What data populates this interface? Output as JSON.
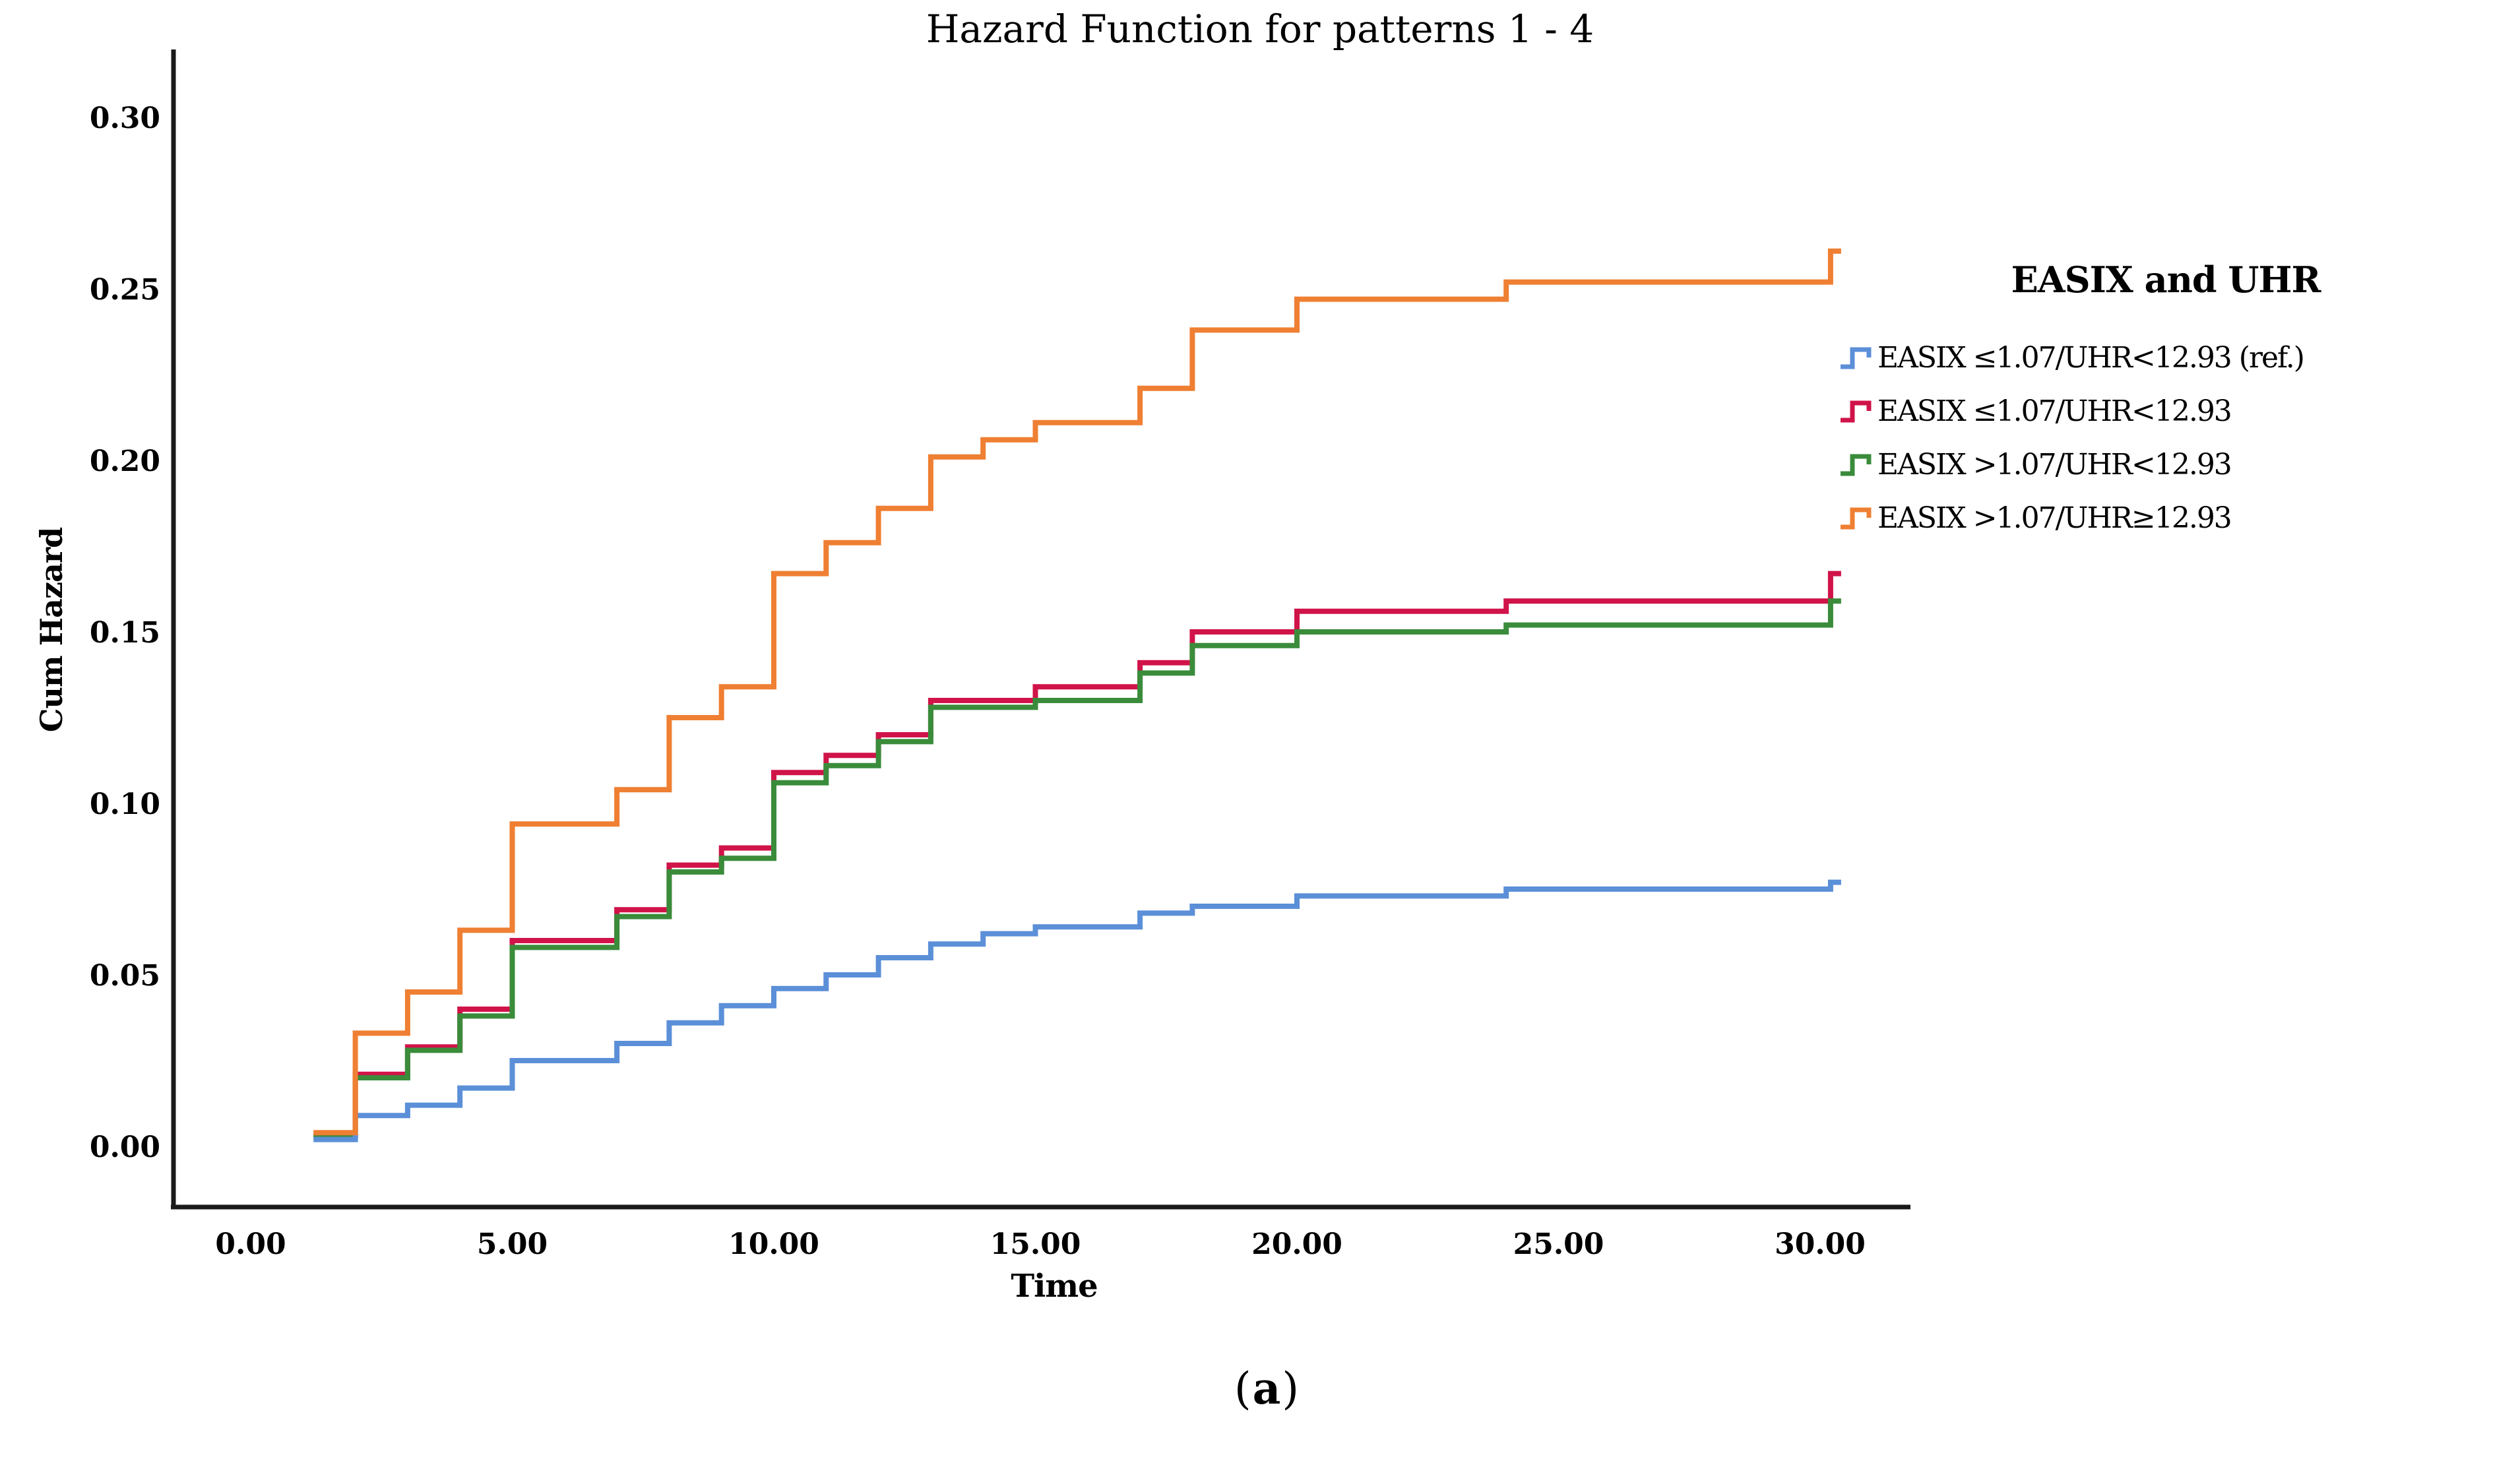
{
  "page": {
    "title": "Hazard Function for patterns 1 - 4",
    "caption": {
      "open": "(",
      "letter": "a",
      "close": ")"
    }
  },
  "axes": {
    "x": {
      "label": "Time",
      "ticks": [
        {
          "v": 0,
          "label": "0.00"
        },
        {
          "v": 5,
          "label": "5.00"
        },
        {
          "v": 10,
          "label": "10.00"
        },
        {
          "v": 15,
          "label": "15.00"
        },
        {
          "v": 20,
          "label": "20.00"
        },
        {
          "v": 25,
          "label": "25.00"
        },
        {
          "v": 30,
          "label": "30.00"
        }
      ]
    },
    "y": {
      "label": "Cum Hazard",
      "ticks": [
        {
          "v": 0.0,
          "label": "0.00"
        },
        {
          "v": 0.05,
          "label": "0.05"
        },
        {
          "v": 0.1,
          "label": "0.10"
        },
        {
          "v": 0.15,
          "label": "0.15"
        },
        {
          "v": 0.2,
          "label": "0.20"
        },
        {
          "v": 0.25,
          "label": "0.25"
        },
        {
          "v": 0.3,
          "label": "0.30"
        }
      ]
    }
  },
  "legend": {
    "title": "EASIX and UHR"
  },
  "chart_data": {
    "type": "line",
    "subtype": "step-cumulative-hazard",
    "title": "Hazard Function for patterns 1 - 4",
    "xlabel": "Time",
    "ylabel": "Cum Hazard",
    "xlim": [
      0,
      31.5
    ],
    "ylim": [
      0,
      0.31
    ],
    "grid": false,
    "legend_position": "right",
    "series": [
      {
        "name": "EASIX ≤1.07/UHR<12.93 (ref.)",
        "color": "#5B8FD8",
        "points": [
          [
            1.2,
            0.002
          ],
          [
            2,
            0.009
          ],
          [
            3,
            0.012
          ],
          [
            4,
            0.017
          ],
          [
            5,
            0.025
          ],
          [
            7,
            0.03
          ],
          [
            8,
            0.036
          ],
          [
            9,
            0.041
          ],
          [
            10,
            0.046
          ],
          [
            11,
            0.05
          ],
          [
            12,
            0.055
          ],
          [
            13,
            0.059
          ],
          [
            14,
            0.062
          ],
          [
            15,
            0.064
          ],
          [
            17,
            0.068
          ],
          [
            18,
            0.07
          ],
          [
            20,
            0.073
          ],
          [
            24,
            0.075
          ],
          [
            30.2,
            0.077
          ]
        ]
      },
      {
        "name": "EASIX ≤1.07/UHR<12.93",
        "color": "#D01349",
        "points": [
          [
            1.2,
            0.003
          ],
          [
            2,
            0.021
          ],
          [
            3,
            0.029
          ],
          [
            4,
            0.04
          ],
          [
            5,
            0.06
          ],
          [
            7,
            0.069
          ],
          [
            8,
            0.082
          ],
          [
            9,
            0.087
          ],
          [
            10,
            0.109
          ],
          [
            11,
            0.114
          ],
          [
            12,
            0.12
          ],
          [
            13,
            0.13
          ],
          [
            15,
            0.134
          ],
          [
            17,
            0.141
          ],
          [
            18,
            0.15
          ],
          [
            20,
            0.156
          ],
          [
            24,
            0.159
          ],
          [
            30.2,
            0.167
          ]
        ]
      },
      {
        "name": "EASIX >1.07/UHR<12.93",
        "color": "#3A8C3B",
        "points": [
          [
            1.2,
            0.003
          ],
          [
            2,
            0.02
          ],
          [
            3,
            0.028
          ],
          [
            4,
            0.038
          ],
          [
            5,
            0.058
          ],
          [
            7,
            0.067
          ],
          [
            8,
            0.08
          ],
          [
            9,
            0.084
          ],
          [
            10,
            0.106
          ],
          [
            11,
            0.111
          ],
          [
            12,
            0.118
          ],
          [
            13,
            0.128
          ],
          [
            15,
            0.13
          ],
          [
            17,
            0.138
          ],
          [
            18,
            0.146
          ],
          [
            20,
            0.15
          ],
          [
            24,
            0.152
          ],
          [
            30.2,
            0.159
          ]
        ]
      },
      {
        "name": "EASIX >1.07/UHR≥12.93",
        "color": "#EF7F32",
        "points": [
          [
            1.2,
            0.004
          ],
          [
            2,
            0.033
          ],
          [
            3,
            0.045
          ],
          [
            4,
            0.063
          ],
          [
            5,
            0.094
          ],
          [
            7,
            0.104
          ],
          [
            8,
            0.125
          ],
          [
            9,
            0.134
          ],
          [
            10,
            0.167
          ],
          [
            11,
            0.176
          ],
          [
            12,
            0.186
          ],
          [
            13,
            0.201
          ],
          [
            14,
            0.206
          ],
          [
            15,
            0.211
          ],
          [
            17,
            0.221
          ],
          [
            18,
            0.238
          ],
          [
            20,
            0.247
          ],
          [
            24,
            0.252
          ],
          [
            30.2,
            0.261
          ]
        ]
      }
    ]
  }
}
